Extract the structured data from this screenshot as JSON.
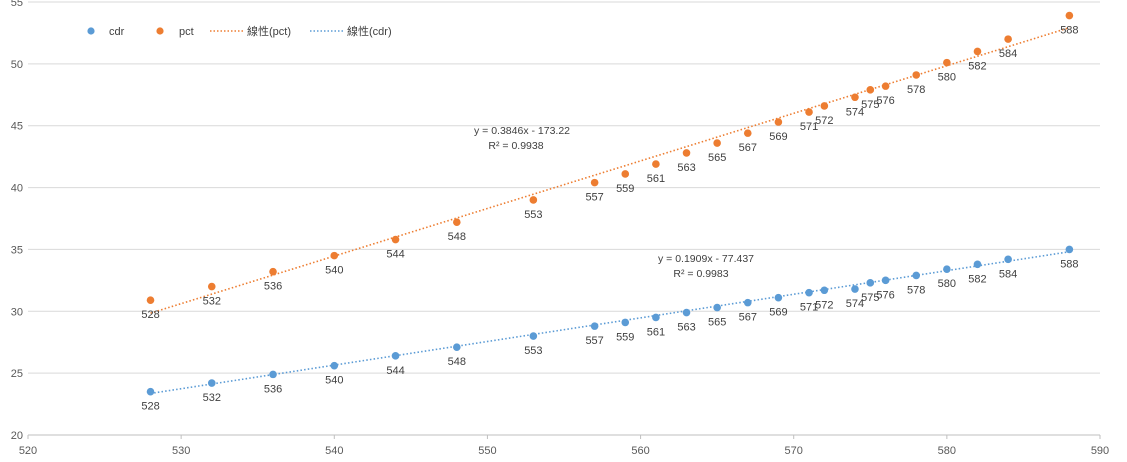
{
  "chart_data": {
    "type": "scatter",
    "title": "",
    "xlabel": "",
    "ylabel": "",
    "xlim": [
      520,
      590
    ],
    "ylim": [
      20,
      55
    ],
    "x_ticks": [
      520,
      530,
      540,
      550,
      560,
      570,
      580,
      590
    ],
    "y_ticks": [
      20,
      25,
      30,
      35,
      40,
      45,
      50,
      55
    ],
    "grid": "horizontal",
    "legend_position": "top-left",
    "legend": [
      {
        "key": "cdr",
        "label": "cdr",
        "kind": "marker"
      },
      {
        "key": "pct",
        "label": "pct",
        "kind": "marker"
      },
      {
        "key": "pct_trend",
        "label": "線性(pct)",
        "kind": "trend"
      },
      {
        "key": "cdr_trend",
        "label": "線性(cdr)",
        "kind": "trend"
      }
    ],
    "colors": {
      "cdr": "#5B9BD5",
      "pct": "#ED7D31",
      "grid": "#D9D9D9",
      "axis": "#BFBFBF"
    },
    "series": [
      {
        "name": "cdr",
        "x": [
          528,
          532,
          536,
          540,
          544,
          548,
          553,
          557,
          559,
          561,
          563,
          565,
          567,
          569,
          571,
          572,
          574,
          575,
          576,
          578,
          580,
          582,
          584,
          588
        ],
        "y": [
          23.5,
          24.2,
          24.9,
          25.6,
          26.4,
          27.1,
          28.0,
          28.8,
          29.1,
          29.5,
          29.9,
          30.3,
          30.7,
          31.1,
          31.5,
          31.7,
          31.8,
          32.3,
          32.5,
          32.9,
          33.4,
          33.8,
          34.2,
          35.0
        ],
        "labels": [
          "528",
          "532",
          "536",
          "540",
          "544",
          "548",
          "553",
          "557",
          "559",
          "561",
          "563",
          "565",
          "567",
          "569",
          "571",
          "572",
          "574",
          "575",
          "576",
          "578",
          "580",
          "582",
          "584",
          "588"
        ]
      },
      {
        "name": "pct",
        "x": [
          528,
          532,
          536,
          540,
          544,
          548,
          553,
          557,
          559,
          561,
          563,
          565,
          567,
          569,
          571,
          572,
          574,
          575,
          576,
          578,
          580,
          582,
          584,
          588
        ],
        "y": [
          30.9,
          32.0,
          33.2,
          34.5,
          35.8,
          37.2,
          39.0,
          40.4,
          41.1,
          41.9,
          42.8,
          43.6,
          44.4,
          45.3,
          46.1,
          46.6,
          47.3,
          47.9,
          48.2,
          49.1,
          50.1,
          51.0,
          52.0,
          53.9
        ],
        "labels": [
          "528",
          "532",
          "536",
          "540",
          "544",
          "548",
          "553",
          "557",
          "559",
          "561",
          "563",
          "565",
          "567",
          "569",
          "571",
          "572",
          "574",
          "575",
          "576",
          "578",
          "580",
          "582",
          "584",
          "588"
        ]
      }
    ],
    "trendlines": [
      {
        "series": "pct",
        "slope": 0.3846,
        "intercept": -173.22,
        "equation": "y = 0.3846x - 173.22",
        "r2": "R² = 0.9938"
      },
      {
        "series": "cdr",
        "slope": 0.1909,
        "intercept": -77.437,
        "equation": "y = 0.1909x - 77.437",
        "r2": "R² = 0.9983"
      }
    ]
  }
}
